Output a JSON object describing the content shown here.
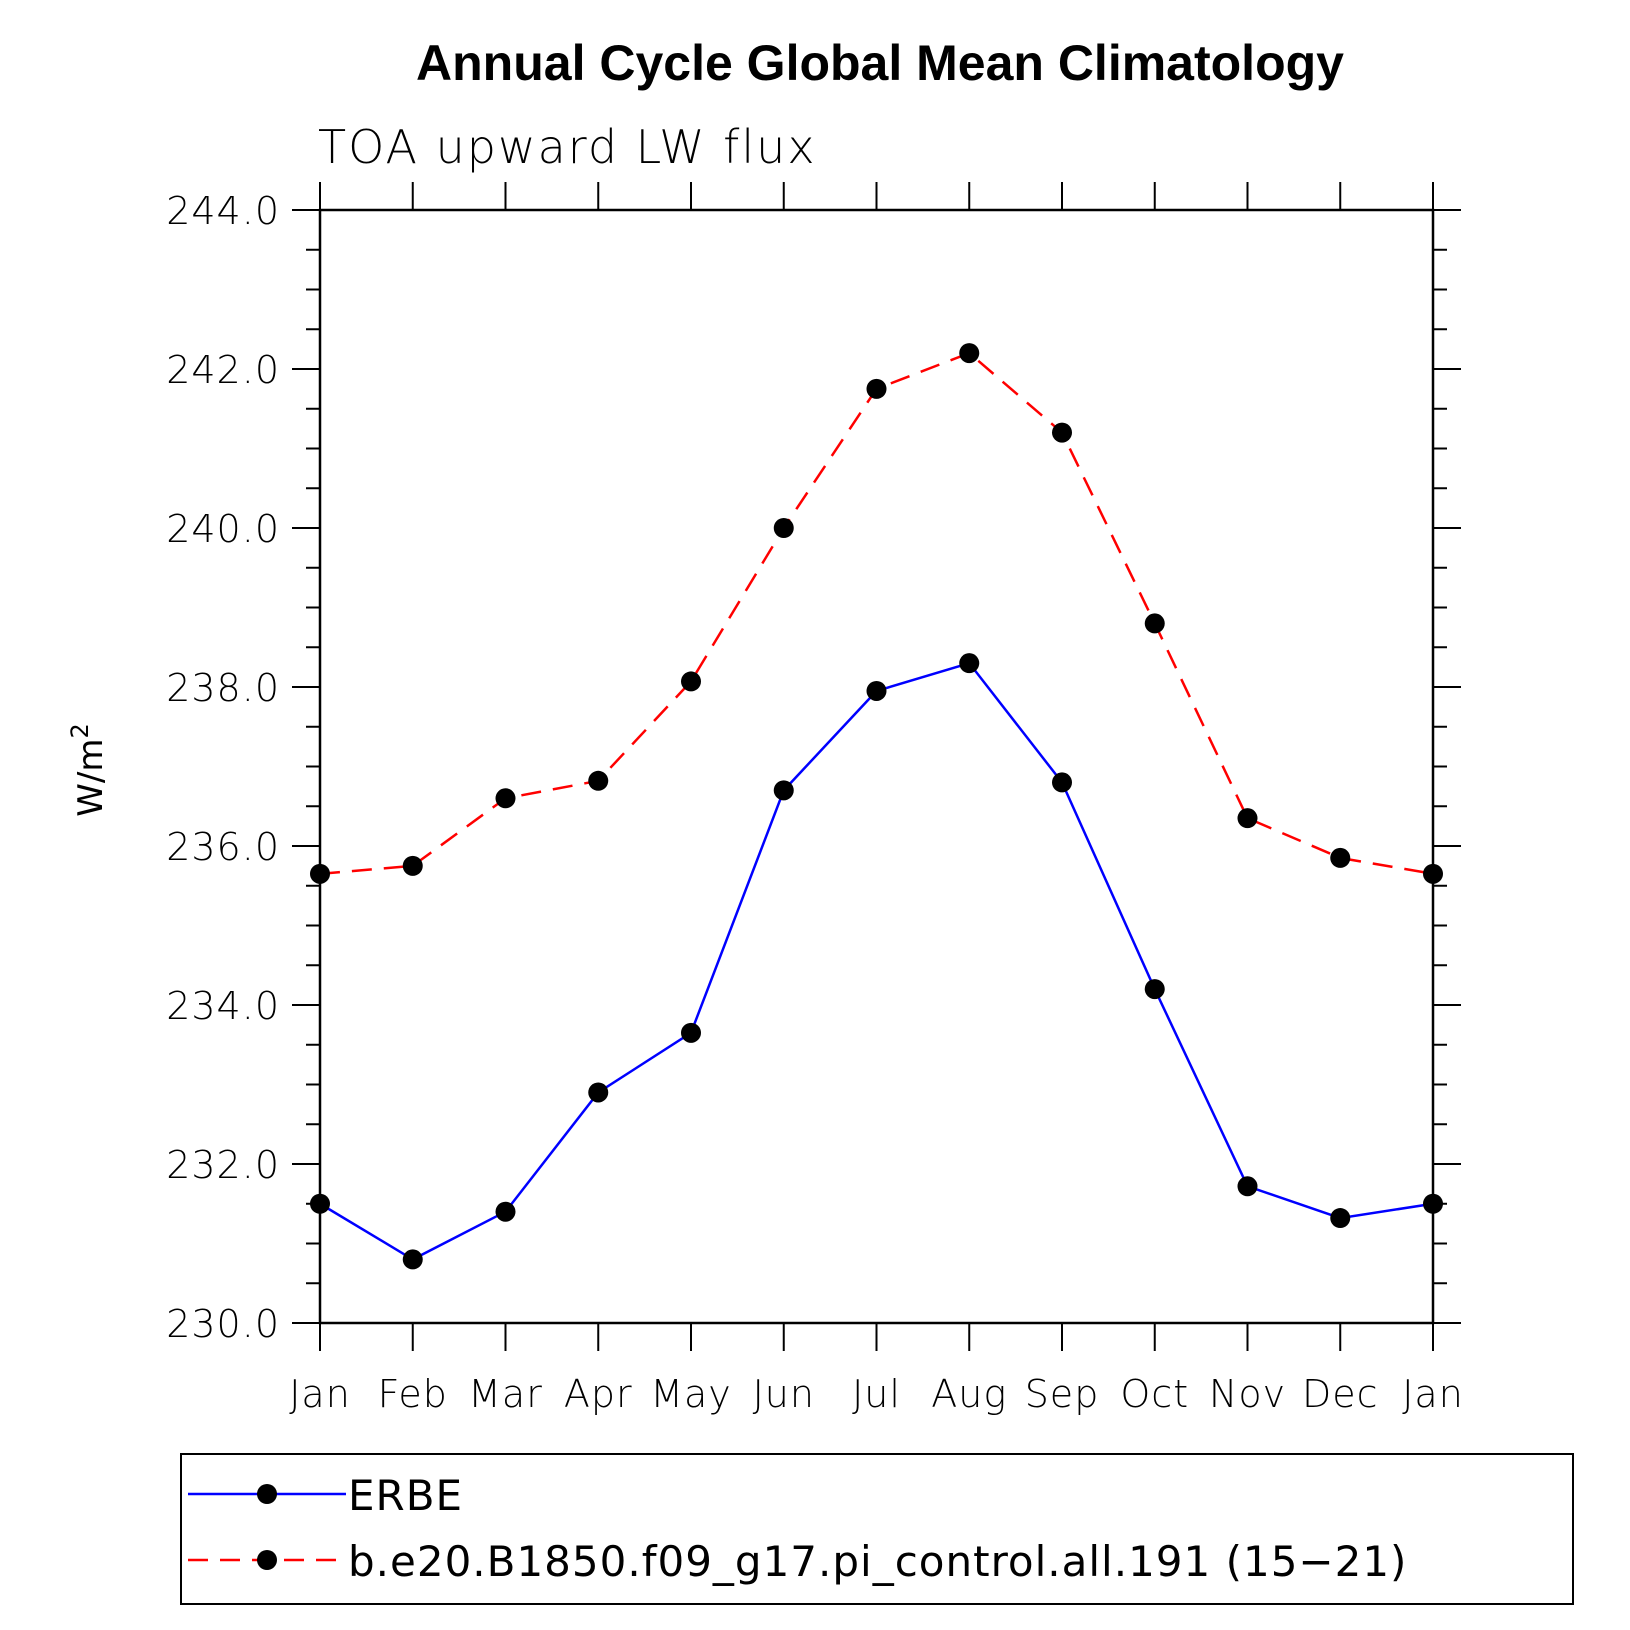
{
  "chart_data": {
    "type": "line",
    "title": "Annual Cycle Global Mean Climatology",
    "subtitle": "TOA upward LW flux",
    "ylabel": "W/m",
    "ylabel_sup": "2",
    "ylim": [
      230.0,
      244.0
    ],
    "yticks": [
      "230.0",
      "232.0",
      "234.0",
      "236.0",
      "238.0",
      "240.0",
      "242.0",
      "244.0"
    ],
    "categories": [
      "Jan",
      "Feb",
      "Mar",
      "Apr",
      "May",
      "Jun",
      "Jul",
      "Aug",
      "Sep",
      "Oct",
      "Nov",
      "Dec",
      "Jan"
    ],
    "legend_position": "bottom",
    "grid": false,
    "series": [
      {
        "name": "ERBE",
        "color": "#0000ff",
        "dash": "solid",
        "values": [
          231.5,
          230.8,
          231.4,
          232.9,
          233.65,
          236.7,
          237.95,
          238.3,
          236.8,
          234.2,
          231.72,
          231.32,
          231.5
        ]
      },
      {
        "name": "b.e20.B1850.f09_g17.pi_control.all.191 (15−21)",
        "color": "#ff0000",
        "dash": "dashed",
        "values": [
          235.65,
          235.75,
          236.6,
          236.82,
          238.07,
          240.0,
          241.75,
          242.2,
          241.2,
          238.8,
          236.35,
          235.85,
          235.65
        ]
      }
    ]
  }
}
